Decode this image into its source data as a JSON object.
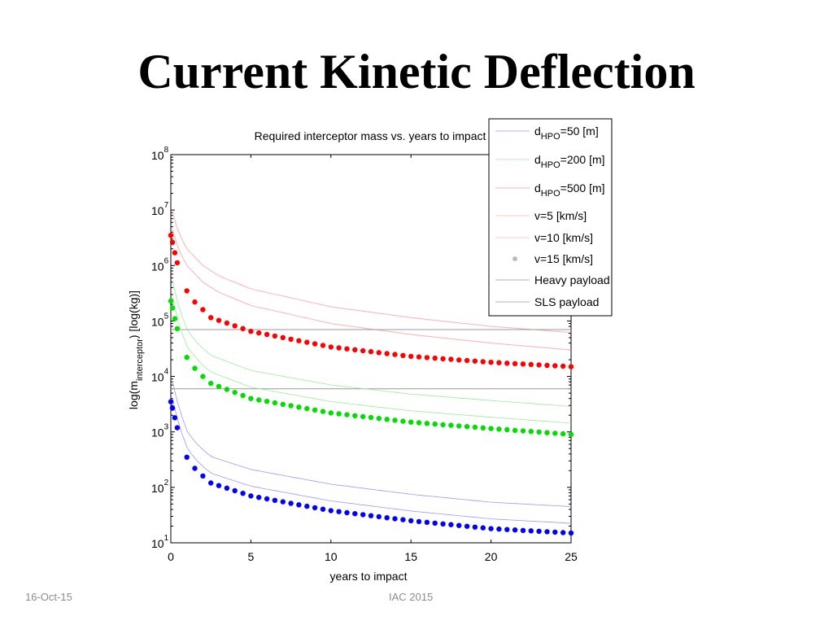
{
  "slide": {
    "title": "Current Kinetic Deflection",
    "footer_date": "16-Oct-15",
    "footer_center": "IAC 2015"
  },
  "chart_data": {
    "type": "scatter",
    "title": "Required interceptor mass vs. years to impact",
    "xlabel": "years to impact",
    "ylabel_main": "log(m",
    "ylabel_sub": "interceptor",
    "ylabel_tail": ") [log(kg)]",
    "xlim": [
      0,
      25
    ],
    "ylim": [
      10,
      100000000
    ],
    "yscale": "log",
    "x_ticks": [
      "0",
      "5",
      "10",
      "15",
      "20",
      "25"
    ],
    "y_ticks": [
      {
        "base": "10",
        "exp": "1"
      },
      {
        "base": "10",
        "exp": "2"
      },
      {
        "base": "10",
        "exp": "3"
      },
      {
        "base": "10",
        "exp": "4"
      },
      {
        "base": "10",
        "exp": "5"
      },
      {
        "base": "10",
        "exp": "6"
      },
      {
        "base": "10",
        "exp": "7"
      },
      {
        "base": "10",
        "exp": "8"
      }
    ],
    "grid": false,
    "legend_position": "top-right",
    "colors": {
      "d50": "#0000ff",
      "d200": "#00dd00",
      "d500": "#ff0000",
      "payload_lines": "#999999"
    },
    "series": [
      {
        "name_pre": "d",
        "name_sub": "HPO",
        "name_post": "=50 [m]",
        "color": "#0000ff",
        "marker": "dot",
        "x": [
          0,
          0.25,
          0.5,
          1,
          1.5,
          2,
          2.5,
          5,
          10,
          15,
          20,
          25
        ],
        "y": [
          3500,
          1800,
          900,
          350,
          220,
          160,
          120,
          70,
          38,
          25,
          18,
          15
        ]
      },
      {
        "name_pre": "d",
        "name_sub": "HPO",
        "name_post": "=200 [m]",
        "color": "#00dd00",
        "marker": "dot",
        "x": [
          0,
          0.25,
          0.5,
          1,
          1.5,
          2,
          2.5,
          5,
          10,
          15,
          20,
          25
        ],
        "y": [
          230000,
          110000,
          55000,
          22000,
          14000,
          10000,
          7500,
          4000,
          2200,
          1500,
          1150,
          900
        ]
      },
      {
        "name_pre": "d",
        "name_sub": "HPO",
        "name_post": "=500 [m]",
        "color": "#ff0000",
        "marker": "dot",
        "x": [
          0,
          0.25,
          0.5,
          1,
          1.5,
          2,
          2.5,
          5,
          10,
          15,
          20,
          25
        ],
        "y": [
          3500000,
          1700000,
          850000,
          350000,
          220000,
          160000,
          115000,
          65000,
          34000,
          23000,
          18000,
          15000
        ]
      },
      {
        "name": "v=5 [km/s]",
        "color": "#ffb0b0",
        "marker": "line",
        "x": [
          0.1,
          0.5,
          1,
          2,
          3,
          5,
          10,
          15,
          20,
          25
        ],
        "y": [
          9000000,
          3800000,
          2000000,
          1000000,
          650000,
          380000,
          180000,
          115000,
          80000,
          62000
        ]
      },
      {
        "name": "v=10 [km/s]",
        "color": "#ffb0b0",
        "marker": "line",
        "x": [
          0.1,
          0.5,
          1,
          2,
          3,
          5,
          10,
          15,
          20,
          25
        ],
        "y": [
          4500000,
          1900000,
          1000000,
          500000,
          330000,
          190000,
          90000,
          57000,
          40000,
          30000
        ]
      },
      {
        "name": "v=15 [km/s]",
        "color": "#bbbbbb",
        "marker": "dot",
        "x": [],
        "y": []
      },
      {
        "name": "Heavy payload",
        "color": "#999999",
        "marker": "line",
        "x": [
          0,
          25
        ],
        "y": [
          70000,
          70000
        ]
      },
      {
        "name": "SLS payload",
        "color": "#999999",
        "marker": "line",
        "x": [
          0,
          25
        ],
        "y": [
          6000,
          6000
        ]
      }
    ]
  }
}
